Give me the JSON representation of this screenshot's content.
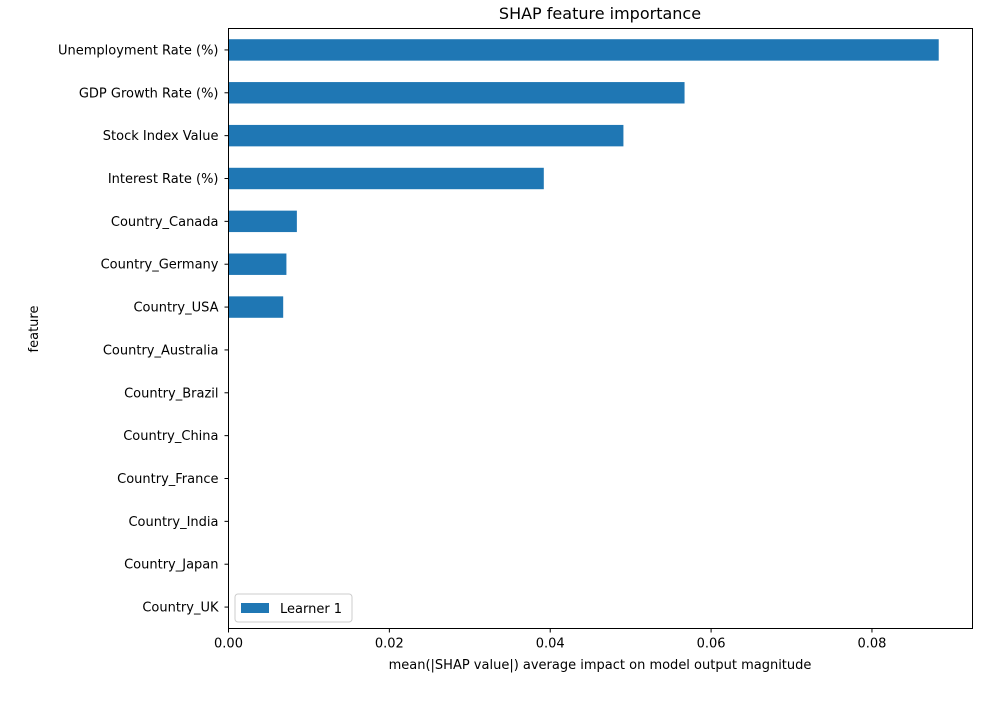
{
  "chart_data": {
    "type": "bar",
    "orientation": "horizontal",
    "title": "SHAP feature importance",
    "xlabel": "mean(|SHAP value|) average impact on model output magnitude",
    "ylabel": "feature",
    "xlim": [
      0,
      0.0925
    ],
    "x_ticks": [
      0.0,
      0.02,
      0.04,
      0.06,
      0.08
    ],
    "x_tick_labels": [
      "0.00",
      "0.02",
      "0.04",
      "0.06",
      "0.08"
    ],
    "grid": false,
    "legend": {
      "position": "lower-left"
    },
    "categories": [
      "Unemployment Rate (%)",
      "GDP Growth Rate (%)",
      "Stock Index Value",
      "Interest Rate (%)",
      "Country_Canada",
      "Country_Germany",
      "Country_USA",
      "Country_Australia",
      "Country_Brazil",
      "Country_China",
      "Country_France",
      "Country_India",
      "Country_Japan",
      "Country_UK"
    ],
    "series": [
      {
        "name": "Learner 1",
        "color": "#1f77b4",
        "values": [
          0.0883,
          0.0567,
          0.0491,
          0.0392,
          0.0085,
          0.0072,
          0.0068,
          0,
          0,
          0,
          0,
          0,
          0,
          0
        ]
      }
    ]
  }
}
